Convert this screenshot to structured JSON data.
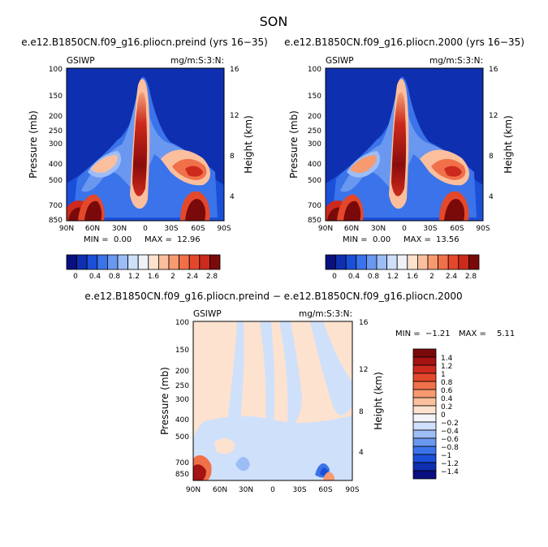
{
  "figure": {
    "title": "SON",
    "colors": {
      "diverging": [
        "#0a0f80",
        "#0e2fb0",
        "#1a4fd8",
        "#3b73ea",
        "#6a98f0",
        "#9dbdf6",
        "#cfe0fb",
        "#f2f4f8",
        "#fde2cf",
        "#fbbf9d",
        "#f79a70",
        "#f0704a",
        "#e4482b",
        "#cc2a1c",
        "#a51313",
        "#7a0a0a"
      ],
      "absolute": [
        "#0a0f80",
        "#0e2fb0",
        "#1a4fd8",
        "#3b73ea",
        "#6a98f0",
        "#9dbdf6",
        "#cfe0fb",
        "#eef1f6",
        "#fde2cf",
        "#fbbf9d",
        "#f79a70",
        "#f0704a",
        "#e4482b",
        "#cc2a1c",
        "#7a0a0a"
      ]
    }
  },
  "chart_data": [
    {
      "type": "heatmap",
      "id": "panel1",
      "title": "e.e12.B1850CN.f09_g16.pliocn.preind (yrs 16−35)",
      "left_label": "GSIWP",
      "right_label": "mg/m:S:3:N:",
      "ylabel": "Pressure (mb)",
      "ylabel_right": "Height (km)",
      "xticks": [
        "90N",
        "60N",
        "30N",
        "0",
        "30S",
        "60S",
        "90S"
      ],
      "yticks": [
        "100",
        "150",
        "200",
        "250",
        "300",
        "400",
        "500",
        "700",
        "850"
      ],
      "yticks_right": [
        "16",
        "12",
        "8",
        "4"
      ],
      "stats": {
        "min_label": "MIN =",
        "min": "0.00",
        "max_label": "MAX =",
        "max": "12.96"
      },
      "colorbar_ticks": [
        "0",
        "0.4",
        "0.8",
        "1.2",
        "1.6",
        "2",
        "2.4",
        "2.8"
      ]
    },
    {
      "type": "heatmap",
      "id": "panel2",
      "title": "e.e12.B1850CN.f09_g16.pliocn.2000 (yrs 16−35)",
      "left_label": "GSIWP",
      "right_label": "mg/m:S:3:N:",
      "ylabel": "Pressure (mb)",
      "ylabel_right": "Height (km)",
      "xticks": [
        "90N",
        "60N",
        "30N",
        "0",
        "30S",
        "60S",
        "90S"
      ],
      "yticks": [
        "100",
        "150",
        "200",
        "250",
        "300",
        "400",
        "500",
        "700",
        "850"
      ],
      "yticks_right": [
        "16",
        "12",
        "8",
        "4"
      ],
      "stats": {
        "min_label": "MIN =",
        "min": "0.00",
        "max_label": "MAX =",
        "max": "13.56"
      },
      "colorbar_ticks": [
        "0",
        "0.4",
        "0.8",
        "1.2",
        "1.6",
        "2",
        "2.4",
        "2.8"
      ]
    },
    {
      "type": "heatmap",
      "id": "panel3",
      "title": "e.e12.B1850CN.f09_g16.pliocn.preind − e.e12.B1850CN.f09_g16.pliocn.2000",
      "left_label": "GSIWP",
      "right_label": "mg/m:S:3:N:",
      "ylabel": "Pressure (mb)",
      "ylabel_right": "Height (km)",
      "xticks": [
        "90N",
        "60N",
        "30N",
        "0",
        "30S",
        "60S",
        "90S"
      ],
      "yticks": [
        "100",
        "150",
        "200",
        "250",
        "300",
        "400",
        "500",
        "700",
        "850"
      ],
      "yticks_right": [
        "16",
        "12",
        "8",
        "4"
      ],
      "stats": {
        "min_label": "MIN =",
        "min": "−1.21",
        "max_label": "MAX =",
        "max": "5.11"
      },
      "colorbar_ticks": [
        "1.4",
        "1.2",
        "1",
        "0.8",
        "0.6",
        "0.4",
        "0.2",
        "0",
        "−0.2",
        "−0.4",
        "−0.6",
        "−0.8",
        "−1",
        "−1.2",
        "−1.4"
      ]
    }
  ]
}
